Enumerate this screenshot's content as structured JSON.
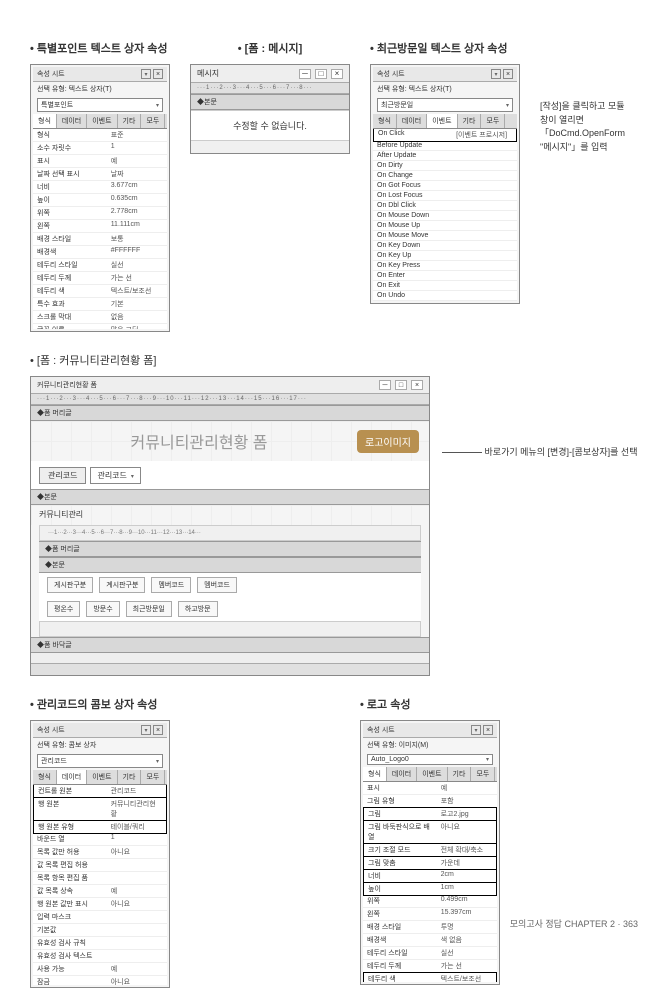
{
  "titles": {
    "special_point": "특별포인트 텍스트 상자 속성",
    "form_message": "[폼 : 메시지]",
    "recent_visit": "최근방문일 텍스트 상자 속성",
    "community_form": "[폼 : 커뮤니티관리현황 폼]",
    "combo_props": "관리코드의 콤보 상자 속성",
    "logo_props": "로고 속성"
  },
  "panel1": {
    "title": "속성 시트",
    "subtitle": "선택 유형: 텍스트 상자(T)",
    "dropdown": "특별포인트",
    "tabs": [
      "형식",
      "데이터",
      "이벤트",
      "기타",
      "모두"
    ],
    "rows": [
      {
        "k": "형식",
        "v": "표준"
      },
      {
        "k": "소수 자릿수",
        "v": "1"
      },
      {
        "k": "표시",
        "v": "예"
      },
      {
        "k": "날짜 선택 표시",
        "v": "날짜"
      },
      {
        "k": "너비",
        "v": "3.677cm"
      },
      {
        "k": "높이",
        "v": "0.635cm"
      },
      {
        "k": "위쪽",
        "v": "2.778cm"
      },
      {
        "k": "왼쪽",
        "v": "11.111cm"
      },
      {
        "k": "배경 스타일",
        "v": "보통"
      },
      {
        "k": "배경색",
        "v": "#FFFFFF"
      },
      {
        "k": "테두리 스타일",
        "v": "실선"
      },
      {
        "k": "테두리 두께",
        "v": "가는 선"
      },
      {
        "k": "테두리 색",
        "v": "텍스트/보조선"
      },
      {
        "k": "특수 효과",
        "v": "기본"
      },
      {
        "k": "스크롤 막대",
        "v": "없음"
      },
      {
        "k": "글꼴 이름",
        "v": "맑은 고딕"
      },
      {
        "k": "글꼴 크기",
        "v": "11"
      },
      {
        "k": "텍스트 맞춤",
        "v": "오른쪽"
      },
      {
        "k": "글꼴 두께",
        "v": "보통"
      },
      {
        "k": "글꼴 밑줄",
        "v": "아니요"
      }
    ]
  },
  "msg": {
    "header": "메시지",
    "ruler": "···1···2···3···4···5···6···7···8···",
    "section": "◆본문",
    "text": "수정할 수 없습니다."
  },
  "panel2": {
    "title": "속성 시트",
    "subtitle": "선택 유형: 텍스트 상자(T)",
    "dropdown": "최근방문일",
    "tabs": [
      "형식",
      "데이터",
      "이벤트",
      "기타",
      "모두"
    ],
    "highlight_val": "[이벤트 프로시저]",
    "rows": [
      {
        "k": "On Click",
        "v": "[이벤트 프로시저]",
        "hl": true
      },
      {
        "k": "Before Update",
        "v": ""
      },
      {
        "k": "After Update",
        "v": ""
      },
      {
        "k": "On Dirty",
        "v": ""
      },
      {
        "k": "On Change",
        "v": ""
      },
      {
        "k": "On Got Focus",
        "v": ""
      },
      {
        "k": "On Lost Focus",
        "v": ""
      },
      {
        "k": "On Dbl Click",
        "v": ""
      },
      {
        "k": "On Mouse Down",
        "v": ""
      },
      {
        "k": "On Mouse Up",
        "v": ""
      },
      {
        "k": "On Mouse Move",
        "v": ""
      },
      {
        "k": "On Key Down",
        "v": ""
      },
      {
        "k": "On Key Up",
        "v": ""
      },
      {
        "k": "On Key Press",
        "v": ""
      },
      {
        "k": "On Enter",
        "v": ""
      },
      {
        "k": "On Exit",
        "v": ""
      },
      {
        "k": "On Undo",
        "v": ""
      }
    ],
    "callout": "[작성]을 클릭하고 모듈 창이 열리면 「DoCmd.OpenForm \"메시지\"」를 입력"
  },
  "bigform": {
    "header": "커뮤니티관리현황 폼",
    "ruler": "···1···2···3···4···5···6···7···8···9···10···11···12···13···14···15···16···17···",
    "page_header": "◆폼 머리글",
    "title_text": "커뮤니티관리현황 폼",
    "logo": "로고이미지",
    "combo_label": "관리코드",
    "combo_value": "관리코드",
    "detail": "◆본문",
    "sub_title": "커뮤니티관리",
    "sub_ruler": "···1···2···3···4···5···6···7···8···9···10···11···12···13···14···",
    "sub_header": "◆폼 머리글",
    "sub_detail": "◆본문",
    "fields": [
      "게시판구분",
      "계시판구분",
      "멤버코드",
      "멤버코드"
    ],
    "fields2": [
      "평온수",
      "방문수",
      "최근방문일",
      "하고방문"
    ],
    "footer": "◆폼 바닥글",
    "callout": "바로가기 메뉴의 [변경]-[콤보상자]를 선택"
  },
  "panel3": {
    "title": "속성 시트",
    "subtitle": "선택 유형: 콤보 상자",
    "dropdown": "관리코드",
    "tabs": [
      "형식",
      "데이터",
      "이벤트",
      "기타",
      "모두"
    ],
    "rows": [
      {
        "k": "컨트롤 원본",
        "v": "관리코드",
        "hl": true
      },
      {
        "k": "행 원본",
        "v": "커뮤니티관리현황",
        "hl": true
      },
      {
        "k": "행 원본 유형",
        "v": "테이블/쿼리",
        "hl": true
      },
      {
        "k": "바운드 열",
        "v": "1"
      },
      {
        "k": "목록 값만 허용",
        "v": "아니요"
      },
      {
        "k": "값 목록 편집 허용",
        "v": ""
      },
      {
        "k": "목록 항목 편집 품",
        "v": ""
      },
      {
        "k": "값 목록 상속",
        "v": "예"
      },
      {
        "k": "행 원본 값만 표시",
        "v": "아니요"
      },
      {
        "k": "입력 마스크",
        "v": ""
      },
      {
        "k": "기본값",
        "v": ""
      },
      {
        "k": "유효성 검사 규칙",
        "v": ""
      },
      {
        "k": "유효성 검사 텍스트",
        "v": ""
      },
      {
        "k": "사용 가능",
        "v": "예"
      },
      {
        "k": "잠금",
        "v": "아니요"
      },
      {
        "k": "자동 확장",
        "v": "예"
      },
      {
        "k": "스마트 태그",
        "v": ""
      }
    ]
  },
  "panel4": {
    "title": "속성 시트",
    "subtitle": "선택 유형: 이미지(M)",
    "dropdown": "Auto_Logo0",
    "tabs": [
      "형식",
      "데이터",
      "이벤트",
      "기타",
      "모두"
    ],
    "rows": [
      {
        "k": "표시",
        "v": "예"
      },
      {
        "k": "그림 유형",
        "v": "포함"
      },
      {
        "k": "그림",
        "v": "로고2.jpg",
        "hl": true
      },
      {
        "k": "그림 바둑판식으로 배열",
        "v": "아니요",
        "hl": true
      },
      {
        "k": "크기 조절 모드",
        "v": "전체 확대/축소",
        "hl": true
      },
      {
        "k": "그림 맞춤",
        "v": "가운데",
        "hl": true
      },
      {
        "k": "너비",
        "v": "2cm",
        "hl": true
      },
      {
        "k": "높이",
        "v": "1cm",
        "hl": true
      },
      {
        "k": "위쪽",
        "v": "0.499cm"
      },
      {
        "k": "왼쪽",
        "v": "15.397cm"
      },
      {
        "k": "배경 스타일",
        "v": "투명"
      },
      {
        "k": "배경색",
        "v": "색 없음"
      },
      {
        "k": "테두리 스타일",
        "v": "실선"
      },
      {
        "k": "테두리 두께",
        "v": "가는 선"
      },
      {
        "k": "테두리 색",
        "v": "텍스트/보조선",
        "hl": true
      },
      {
        "k": "특수 효과",
        "v": "볼록",
        "hl": true
      },
      {
        "k": "하이퍼링크 주소",
        "v": ""
      }
    ]
  },
  "footer": "모의고사 정답 CHAPTER 2 · 363"
}
